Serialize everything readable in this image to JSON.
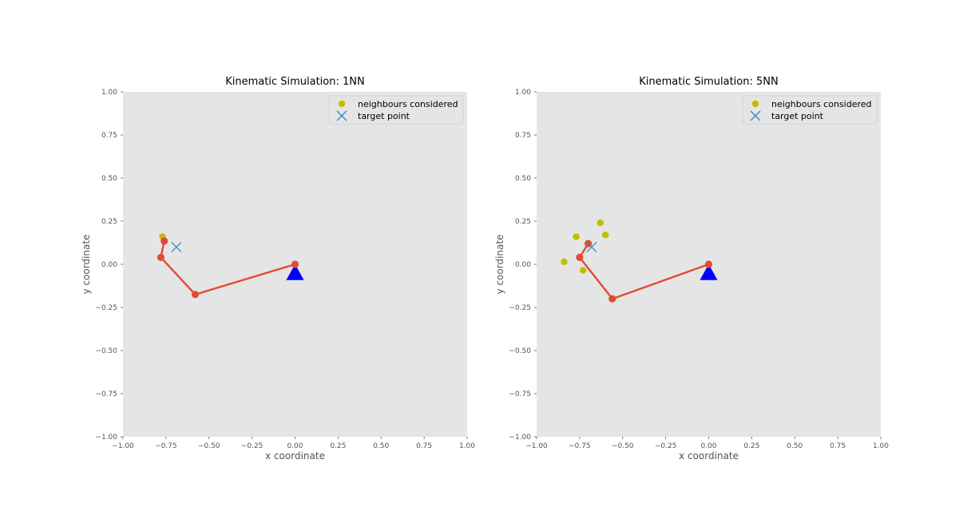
{
  "chart_data": [
    {
      "type": "scatter",
      "title": "Kinematic Simulation: 1NN",
      "xlabel": "x coordinate",
      "ylabel": "y coordinate",
      "xlim": [
        -1.0,
        1.0
      ],
      "ylim": [
        -1.0,
        1.0
      ],
      "xticks": [
        "−1.00",
        "−0.75",
        "−0.50",
        "−0.25",
        "0.00",
        "0.25",
        "0.50",
        "0.75",
        "1.00"
      ],
      "yticks": [
        "1.00",
        "0.75",
        "0.50",
        "0.25",
        "0.00",
        "−0.25",
        "−0.50",
        "−0.75",
        "−1.00"
      ],
      "legend": {
        "position": "top-right",
        "entries": [
          "neighbours considered",
          "target point"
        ]
      },
      "base": {
        "x": 0.0,
        "y": -0.05
      },
      "arm": {
        "x": [
          0.0,
          -0.58,
          -0.78,
          -0.76
        ],
        "y": [
          0.0,
          -0.175,
          0.04,
          0.135
        ]
      },
      "neighbours": {
        "x": [
          -0.77
        ],
        "y": [
          0.16
        ]
      },
      "target": {
        "x": -0.69,
        "y": 0.1
      }
    },
    {
      "type": "scatter",
      "title": "Kinematic Simulation: 5NN",
      "xlabel": "x coordinate",
      "ylabel": "y coordinate",
      "xlim": [
        -1.0,
        1.0
      ],
      "ylim": [
        -1.0,
        1.0
      ],
      "xticks": [
        "−1.00",
        "−0.75",
        "−0.50",
        "−0.25",
        "0.00",
        "0.25",
        "0.50",
        "0.75",
        "1.00"
      ],
      "yticks": [
        "1.00",
        "0.75",
        "0.50",
        "0.25",
        "0.00",
        "−0.25",
        "−0.50",
        "−0.75",
        "−1.00"
      ],
      "legend": {
        "position": "top-right",
        "entries": [
          "neighbours considered",
          "target point"
        ]
      },
      "base": {
        "x": 0.0,
        "y": -0.05
      },
      "arm": {
        "x": [
          0.0,
          -0.56,
          -0.75,
          -0.7
        ],
        "y": [
          0.0,
          -0.2,
          0.04,
          0.12
        ]
      },
      "neighbours": {
        "x": [
          -0.84,
          -0.77,
          -0.73,
          -0.63,
          -0.6
        ],
        "y": [
          0.015,
          0.16,
          -0.035,
          0.24,
          0.17
        ]
      },
      "target": {
        "x": -0.68,
        "y": 0.1
      }
    }
  ],
  "colors": {
    "arm": "#e24a33",
    "neighbour": "#bfbf00",
    "target": "#348abd",
    "base": "#0000ff",
    "axes_bg": "#e5e5e5",
    "legend_bg": "#e5e5e5"
  }
}
